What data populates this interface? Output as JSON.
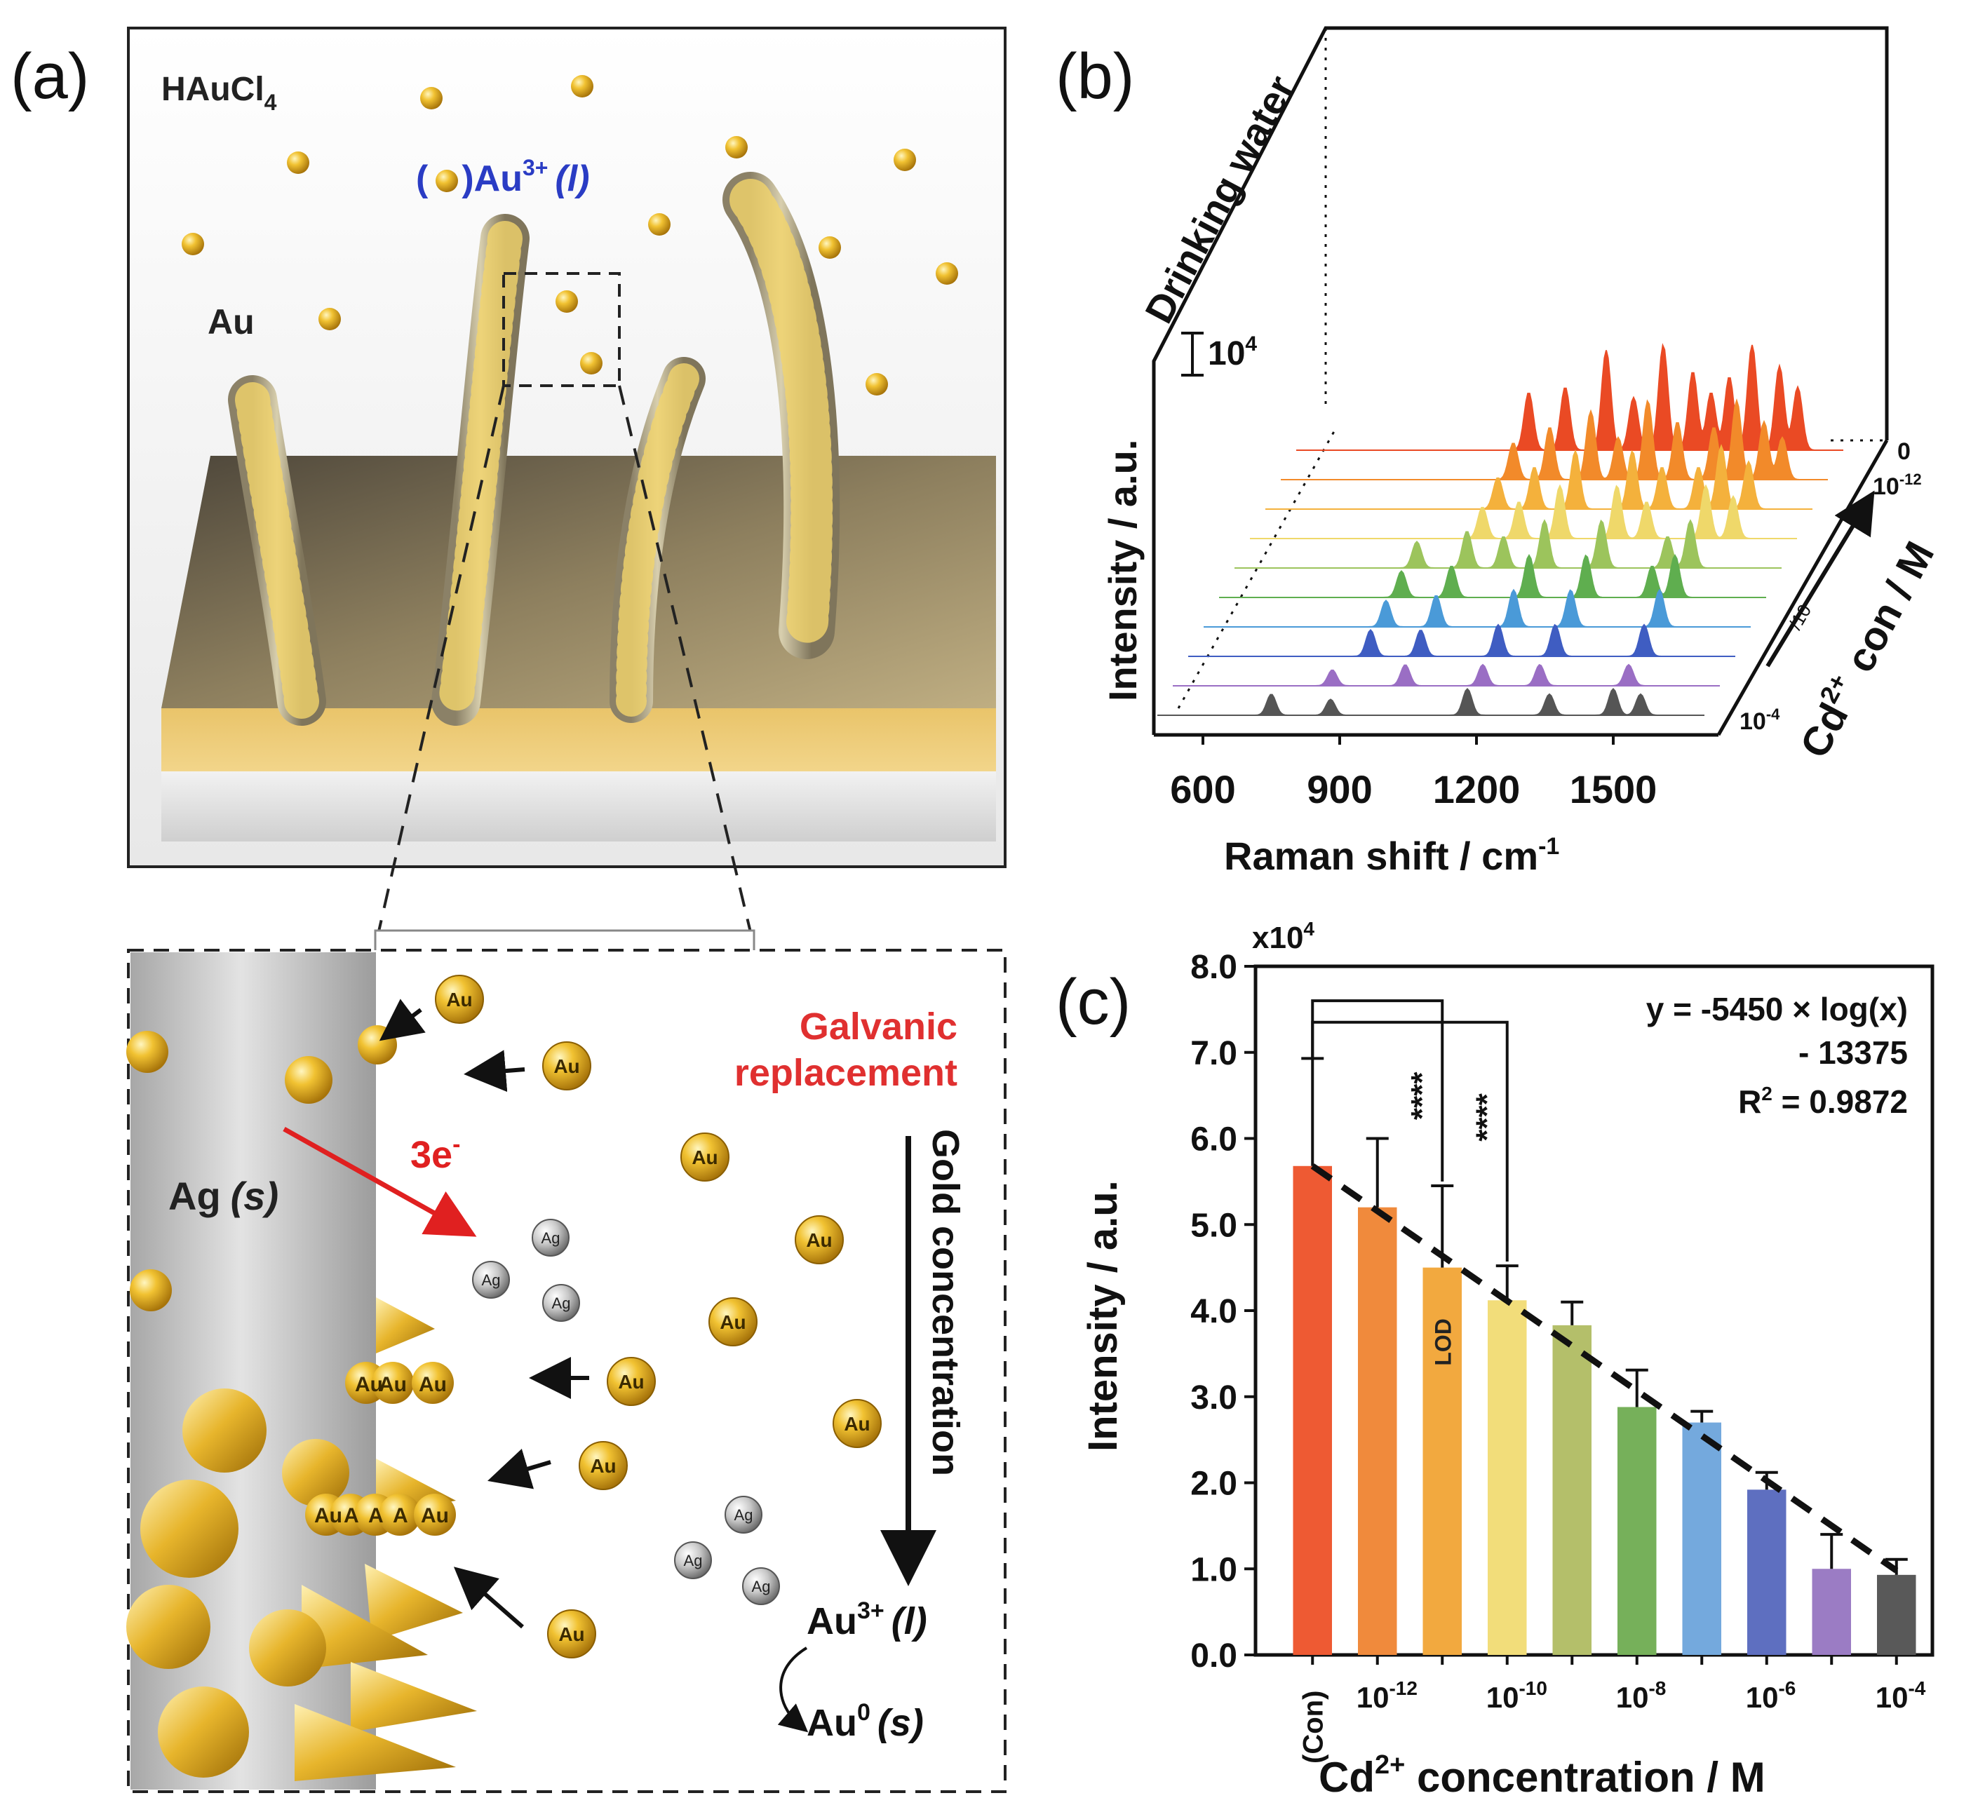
{
  "panel_a": {
    "label": "(a)",
    "top": {
      "reagent": "HAuCl",
      "reagent_sub": "4",
      "ion_open": "(",
      "ion_close": ")Au",
      "ion_sup": "3+",
      "ion_state": "(l)",
      "particle_label": "Au"
    },
    "bottom": {
      "galvanic_line1": "Galvanic",
      "galvanic_line2": "replacement",
      "electrons": "3e",
      "electrons_sup": "-",
      "silver_label": "Ag",
      "silver_state": "(s)",
      "gradient_label": "Gold concentration",
      "au3_label": "Au",
      "au3_sup": "3+",
      "au3_state": "(l)",
      "au0_label": "Au",
      "au0_sup": "0",
      "au0_state": "(s)",
      "au_particle": "Au",
      "ag_particle": "Ag",
      "cluster1": [
        "Au",
        "Au",
        "Au"
      ],
      "cluster2": [
        "Au",
        "A",
        "A",
        "A",
        "Au"
      ]
    }
  },
  "panel_b": {
    "label": "(b)",
    "matrix_label": "Drinking water",
    "scale_bar": "10",
    "scale_bar_sup": "4",
    "y_label": "Intensity / a.u.",
    "x_label": "Raman shift / cm",
    "x_label_sup": "-1",
    "x_ticks": [
      "600",
      "900",
      "1200",
      "1500"
    ],
    "z_label_main": "Cd",
    "z_label_sup": "2+",
    "z_label_tail": "con / M",
    "z_step": "/10",
    "z_top": "0",
    "z_second": "10",
    "z_second_sup": "-12",
    "z_bottom": "10",
    "z_bottom_sup": "-4"
  },
  "panel_c": {
    "label": "(c)",
    "multiplier": "x10",
    "multiplier_sup": "4",
    "equation_line1": "y = -5450 × log(x)",
    "equation_line2": "- 13375",
    "r2_label": "R",
    "r2_sup": "2",
    "r2_value": " = 0.9872",
    "sig1": "****",
    "sig2": "****",
    "lod_label": "LOD",
    "y_label": "Intensity / a.u.",
    "x_label_main": "Cd",
    "x_label_sup": "2+",
    "x_label_tail": " concentration / M",
    "x_tick_con": "(Con)",
    "x_tick_base": "10",
    "y_tick_labels": [
      "0.0",
      "1.0",
      "2.0",
      "3.0",
      "4.0",
      "5.0",
      "6.0",
      "7.0",
      "8.0"
    ]
  },
  "chart_data": {
    "type": "bar",
    "title": "",
    "xlabel": "Cd2+ concentration / M",
    "ylabel": "Intensity / a.u. (x10^4)",
    "categories": [
      "(Con)",
      "1e-12",
      "1e-11",
      "1e-10",
      "1e-9",
      "1e-8",
      "1e-7",
      "1e-6",
      "1e-5",
      "1e-4"
    ],
    "x_tick_exponents": [
      "-12",
      "-10",
      "-8",
      "-6",
      "-4"
    ],
    "values": [
      5.68,
      5.2,
      4.5,
      4.12,
      3.83,
      2.88,
      2.7,
      1.92,
      1.0,
      0.93
    ],
    "errors": [
      1.25,
      0.8,
      0.95,
      0.4,
      0.27,
      0.43,
      0.13,
      0.2,
      0.4,
      0.18
    ],
    "colors": [
      "#ee5a33",
      "#f08a3c",
      "#f2a93f",
      "#f2dd7a",
      "#b4bf6a",
      "#76b05a",
      "#74a9dd",
      "#5e6fc0",
      "#9b7cc4",
      "#595959"
    ],
    "fit": {
      "slope": -5450,
      "intercept": -13375,
      "r2": 0.9872
    },
    "ylim": [
      0,
      8
    ],
    "significance": [
      {
        "from": "(Con)",
        "to": "1e-11",
        "label": "****"
      },
      {
        "from": "(Con)",
        "to": "1e-10",
        "label": "****"
      }
    ],
    "lod_category": "1e-11"
  }
}
